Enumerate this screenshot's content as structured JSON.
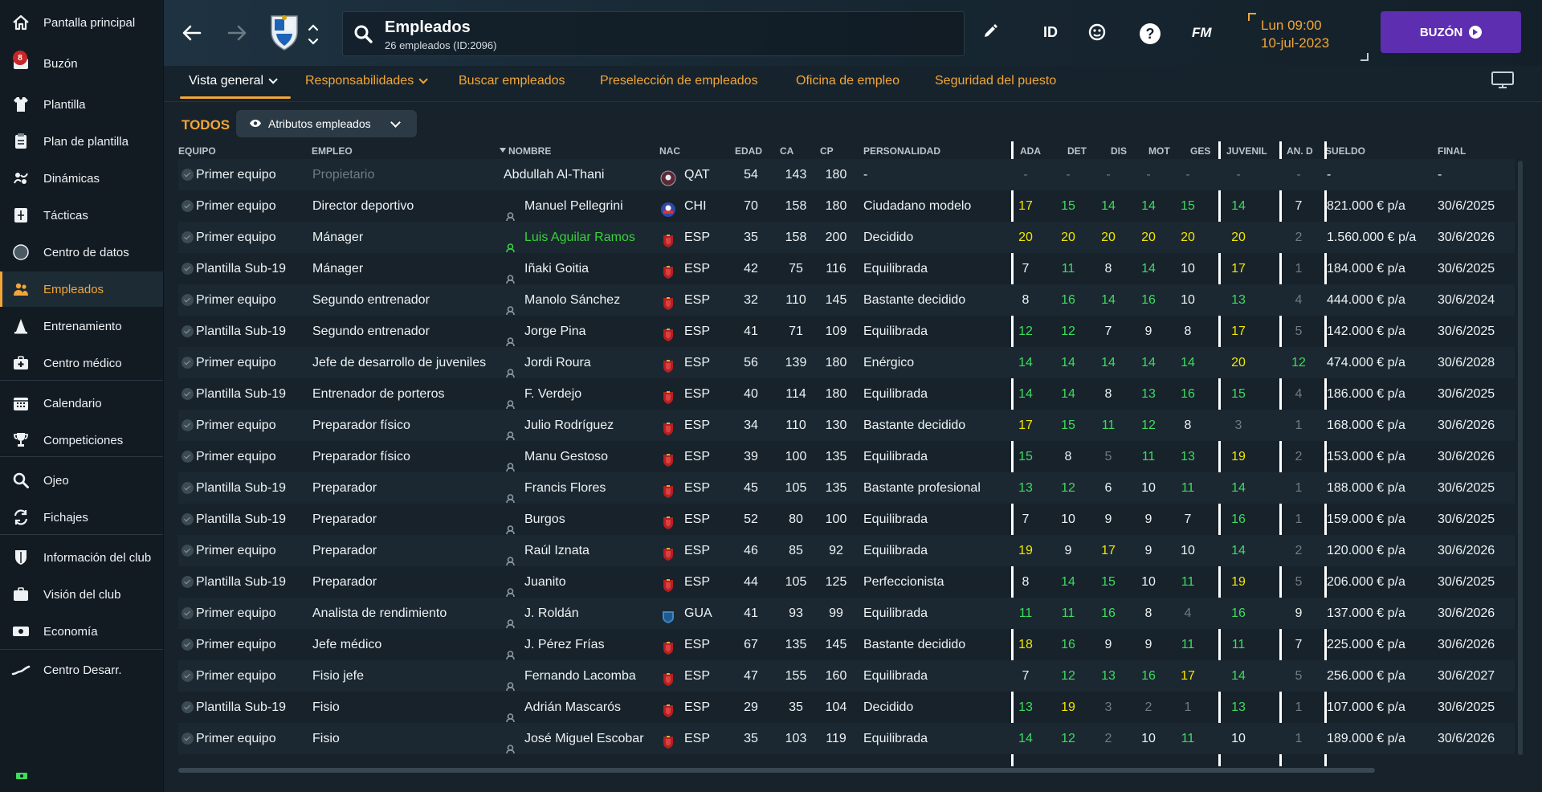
{
  "sidebar": {
    "items": [
      {
        "label": "Pantalla principal",
        "icon": "home-icon"
      },
      {
        "label": "Buzón",
        "icon": "inbox-icon",
        "badge": "8"
      },
      {
        "label": "Plantilla",
        "icon": "shirt-icon"
      },
      {
        "label": "Plan de plantilla",
        "icon": "clipboard-icon"
      },
      {
        "label": "Dinámicas",
        "icon": "dynamics-icon"
      },
      {
        "label": "Tácticas",
        "icon": "tactics-board-icon"
      },
      {
        "label": "Centro de datos",
        "icon": "data-circle-icon"
      },
      {
        "label": "Empleados",
        "icon": "staff-people-icon",
        "active": true
      },
      {
        "label": "Entrenamiento",
        "icon": "training-cone-icon"
      },
      {
        "label": "Centro médico",
        "icon": "medical-kit-icon"
      },
      {
        "label": "Calendario",
        "icon": "calendar-icon"
      },
      {
        "label": "Competiciones",
        "icon": "trophy-icon"
      },
      {
        "label": "Ojeo",
        "icon": "magnifier-icon"
      },
      {
        "label": "Fichajes",
        "icon": "transfer-arrows-icon"
      },
      {
        "label": "Información del club",
        "icon": "club-shield-icon"
      },
      {
        "label": "Visión del club",
        "icon": "briefcase-icon"
      },
      {
        "label": "Economía",
        "icon": "money-icon"
      },
      {
        "label": "Centro Desarr.",
        "icon": "development-curve-icon"
      }
    ]
  },
  "header": {
    "title": "Empleados",
    "subtitle": "26 empleados (ID:2096)",
    "id_label": "ID",
    "fm_label": "FM",
    "date_line1": "Lun 09:00",
    "date_line2": "10-jul-2023",
    "inbox_button": "BUZÓN"
  },
  "tabs": [
    {
      "label": "Vista general",
      "active": true,
      "dropdown": true
    },
    {
      "label": "Responsabilidades",
      "dropdown": true
    },
    {
      "label": "Buscar empleados"
    },
    {
      "label": "Preselección de empleados"
    },
    {
      "label": "Oficina de empleo"
    },
    {
      "label": "Seguridad del puesto"
    }
  ],
  "filter": {
    "all_label": "TODOS",
    "attributes_label": "Atributos empleados"
  },
  "table": {
    "columns": [
      "EQUIPO",
      "EMPLEO",
      "NOMBRE",
      "NAC",
      "EDAD",
      "CA",
      "CP",
      "PERSONALIDAD",
      "ADA",
      "DET",
      "DIS",
      "MOT",
      "GES",
      "JUVENIL",
      "AN. D",
      "SUELDO",
      "FINAL"
    ],
    "rows": [
      {
        "team": "Primer equipo",
        "job": "Propietario",
        "name": "Abdullah Al-Thani",
        "flag": "qat",
        "nat": "QAT",
        "age": "54",
        "ca": "143",
        "cp": "180",
        "pers": "-",
        "ada": "-",
        "det": "-",
        "dis": "-",
        "mot": "-",
        "ges": "-",
        "juv": "-",
        "an": "-",
        "wage": "-",
        "end": "-",
        "owner": true
      },
      {
        "team": "Primer equipo",
        "job": "Director deportivo",
        "name": "Manuel Pellegrini",
        "flag": "chi",
        "nat": "CHI",
        "age": "70",
        "ca": "158",
        "cp": "180",
        "pers": "Ciudadano modelo",
        "ada": "17",
        "det": "15",
        "dis": "14",
        "mot": "14",
        "ges": "15",
        "juv": "14",
        "an": "7",
        "wage": "821.000 € p/a",
        "end": "30/6/2025"
      },
      {
        "team": "Primer equipo",
        "job": "Mánager",
        "name": "Luis Aguilar Ramos",
        "flag": "esp",
        "nat": "ESP",
        "age": "35",
        "ca": "158",
        "cp": "200",
        "pers": "Decidido",
        "ada": "20",
        "det": "20",
        "dis": "20",
        "mot": "20",
        "ges": "20",
        "juv": "20",
        "an": "2",
        "wage": "1.560.000 € p/a",
        "end": "30/6/2026",
        "you": true
      },
      {
        "team": "Plantilla Sub-19",
        "job": "Mánager",
        "name": "Iñaki Goitia",
        "flag": "esp",
        "nat": "ESP",
        "age": "42",
        "ca": "75",
        "cp": "116",
        "pers": "Equilibrada",
        "ada": "7",
        "det": "11",
        "dis": "8",
        "mot": "14",
        "ges": "10",
        "juv": "17",
        "an": "1",
        "wage": "184.000 € p/a",
        "end": "30/6/2025"
      },
      {
        "team": "Primer equipo",
        "job": "Segundo entrenador",
        "name": "Manolo Sánchez",
        "flag": "esp",
        "nat": "ESP",
        "age": "32",
        "ca": "110",
        "cp": "145",
        "pers": "Bastante decidido",
        "ada": "8",
        "det": "16",
        "dis": "14",
        "mot": "16",
        "ges": "10",
        "juv": "13",
        "an": "4",
        "wage": "444.000 € p/a",
        "end": "30/6/2024"
      },
      {
        "team": "Plantilla Sub-19",
        "job": "Segundo entrenador",
        "name": "Jorge Pina",
        "flag": "esp",
        "nat": "ESP",
        "age": "41",
        "ca": "71",
        "cp": "109",
        "pers": "Equilibrada",
        "ada": "12",
        "det": "12",
        "dis": "7",
        "mot": "9",
        "ges": "8",
        "juv": "17",
        "an": "5",
        "wage": "142.000 € p/a",
        "end": "30/6/2025"
      },
      {
        "team": "Primer equipo",
        "job": "Jefe de desarrollo de juveniles",
        "name": "Jordi Roura",
        "flag": "esp",
        "nat": "ESP",
        "age": "56",
        "ca": "139",
        "cp": "180",
        "pers": "Enérgico",
        "ada": "14",
        "det": "14",
        "dis": "14",
        "mot": "14",
        "ges": "14",
        "juv": "20",
        "an": "12",
        "wage": "474.000 € p/a",
        "end": "30/6/2028"
      },
      {
        "team": "Plantilla Sub-19",
        "job": "Entrenador de porteros",
        "name": "F. Verdejo",
        "flag": "esp",
        "nat": "ESP",
        "age": "40",
        "ca": "114",
        "cp": "180",
        "pers": "Equilibrada",
        "ada": "14",
        "det": "14",
        "dis": "8",
        "mot": "13",
        "ges": "16",
        "juv": "15",
        "an": "4",
        "wage": "186.000 € p/a",
        "end": "30/6/2025"
      },
      {
        "team": "Primer equipo",
        "job": "Preparador físico",
        "name": "Julio Rodríguez",
        "flag": "esp",
        "nat": "ESP",
        "age": "34",
        "ca": "110",
        "cp": "130",
        "pers": "Bastante decidido",
        "ada": "17",
        "det": "15",
        "dis": "11",
        "mot": "12",
        "ges": "8",
        "juv": "3",
        "an": "1",
        "wage": "168.000 € p/a",
        "end": "30/6/2026"
      },
      {
        "team": "Primer equipo",
        "job": "Preparador físico",
        "name": "Manu Gestoso",
        "flag": "esp",
        "nat": "ESP",
        "age": "39",
        "ca": "100",
        "cp": "135",
        "pers": "Equilibrada",
        "ada": "15",
        "det": "8",
        "dis": "5",
        "mot": "11",
        "ges": "13",
        "juv": "19",
        "an": "2",
        "wage": "153.000 € p/a",
        "end": "30/6/2026"
      },
      {
        "team": "Plantilla Sub-19",
        "job": "Preparador",
        "name": "Francis Flores",
        "flag": "esp",
        "nat": "ESP",
        "age": "45",
        "ca": "105",
        "cp": "135",
        "pers": "Bastante profesional",
        "ada": "13",
        "det": "12",
        "dis": "6",
        "mot": "10",
        "ges": "11",
        "juv": "14",
        "an": "1",
        "wage": "188.000 € p/a",
        "end": "30/6/2025"
      },
      {
        "team": "Plantilla Sub-19",
        "job": "Preparador",
        "name": "Burgos",
        "flag": "esp",
        "nat": "ESP",
        "age": "52",
        "ca": "80",
        "cp": "100",
        "pers": "Equilibrada",
        "ada": "7",
        "det": "10",
        "dis": "9",
        "mot": "9",
        "ges": "7",
        "juv": "16",
        "an": "1",
        "wage": "159.000 € p/a",
        "end": "30/6/2025"
      },
      {
        "team": "Primer equipo",
        "job": "Preparador",
        "name": "Raúl Iznata",
        "flag": "esp",
        "nat": "ESP",
        "age": "46",
        "ca": "85",
        "cp": "92",
        "pers": "Equilibrada",
        "ada": "19",
        "det": "9",
        "dis": "17",
        "mot": "9",
        "ges": "10",
        "juv": "14",
        "an": "2",
        "wage": "120.000 € p/a",
        "end": "30/6/2026"
      },
      {
        "team": "Plantilla Sub-19",
        "job": "Preparador",
        "name": "Juanito",
        "flag": "esp",
        "nat": "ESP",
        "age": "44",
        "ca": "105",
        "cp": "125",
        "pers": "Perfeccionista",
        "ada": "8",
        "det": "14",
        "dis": "15",
        "mot": "10",
        "ges": "11",
        "juv": "19",
        "an": "5",
        "wage": "206.000 € p/a",
        "end": "30/6/2025"
      },
      {
        "team": "Primer equipo",
        "job": "Analista de rendimiento",
        "name": "J. Roldán",
        "flag": "gua",
        "nat": "GUA",
        "age": "41",
        "ca": "93",
        "cp": "99",
        "pers": "Equilibrada",
        "ada": "11",
        "det": "11",
        "dis": "16",
        "mot": "8",
        "ges": "4",
        "juv": "16",
        "an": "9",
        "wage": "137.000 € p/a",
        "end": "30/6/2026"
      },
      {
        "team": "Primer equipo",
        "job": "Jefe médico",
        "name": "J. Pérez Frías",
        "flag": "esp",
        "nat": "ESP",
        "age": "67",
        "ca": "135",
        "cp": "145",
        "pers": "Bastante decidido",
        "ada": "18",
        "det": "16",
        "dis": "9",
        "mot": "9",
        "ges": "11",
        "juv": "11",
        "an": "7",
        "wage": "225.000 € p/a",
        "end": "30/6/2026"
      },
      {
        "team": "Primer equipo",
        "job": "Fisio jefe",
        "name": "Fernando Lacomba",
        "flag": "esp",
        "nat": "ESP",
        "age": "47",
        "ca": "155",
        "cp": "160",
        "pers": "Equilibrada",
        "ada": "7",
        "det": "12",
        "dis": "13",
        "mot": "16",
        "ges": "17",
        "juv": "14",
        "an": "5",
        "wage": "256.000 € p/a",
        "end": "30/6/2027"
      },
      {
        "team": "Plantilla Sub-19",
        "job": "Fisio",
        "name": "Adrián Mascarós",
        "flag": "esp",
        "nat": "ESP",
        "age": "29",
        "ca": "35",
        "cp": "104",
        "pers": "Decidido",
        "ada": "13",
        "det": "19",
        "dis": "3",
        "mot": "2",
        "ges": "1",
        "juv": "13",
        "an": "1",
        "wage": "107.000 € p/a",
        "end": "30/6/2025"
      },
      {
        "team": "Primer equipo",
        "job": "Fisio",
        "name": "José Miguel Escobar",
        "flag": "esp",
        "nat": "ESP",
        "age": "35",
        "ca": "103",
        "cp": "119",
        "pers": "Equilibrada",
        "ada": "14",
        "det": "12",
        "dis": "2",
        "mot": "10",
        "ges": "11",
        "juv": "10",
        "an": "1",
        "wage": "189.000 € p/a",
        "end": "30/6/2026"
      }
    ]
  },
  "colors": {
    "accent": "#f3a637",
    "attr_green": "#3ddc5f",
    "attr_yellow": "#f2e600",
    "attr_white": "#eef2f4",
    "attr_grey": "#6f7c85",
    "you_green": "#39d23b",
    "inbox_purple": "#5e2eb0"
  }
}
